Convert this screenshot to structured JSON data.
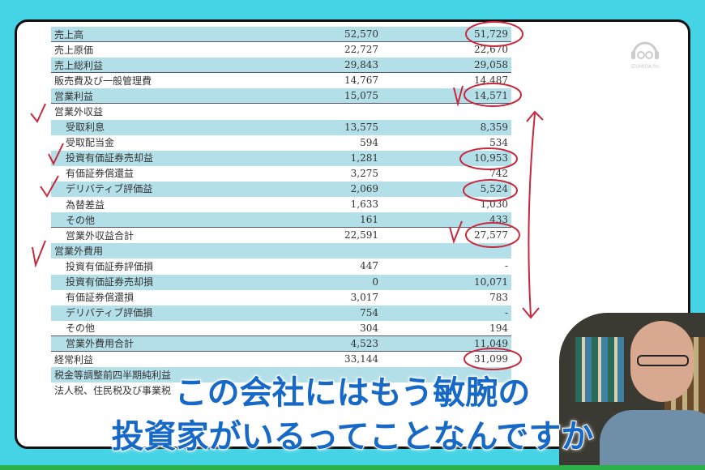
{
  "logo": {
    "text": "IZUMIDA.fm"
  },
  "table": {
    "rows": [
      {
        "label": "売上高",
        "v1": "52,570",
        "v2": "51,729",
        "indent": false
      },
      {
        "label": "売上原価",
        "v1": "22,727",
        "v2": "22,670",
        "indent": false
      },
      {
        "label": "売上総利益",
        "v1": "29,843",
        "v2": "29,058",
        "indent": false
      },
      {
        "label": "販売費及び一般管理費",
        "v1": "14,767",
        "v2": "14,487",
        "indent": false
      },
      {
        "label": "営業利益",
        "v1": "15,075",
        "v2": "14,571",
        "indent": false
      },
      {
        "label": "営業外収益",
        "v1": "",
        "v2": "",
        "indent": false
      },
      {
        "label": "受取利息",
        "v1": "13,575",
        "v2": "8,359",
        "indent": true
      },
      {
        "label": "受取配当金",
        "v1": "594",
        "v2": "534",
        "indent": true
      },
      {
        "label": "投資有価証券売却益",
        "v1": "1,281",
        "v2": "10,953",
        "indent": true
      },
      {
        "label": "有価証券償還益",
        "v1": "3,275",
        "v2": "742",
        "indent": true
      },
      {
        "label": "デリバティブ評価益",
        "v1": "2,069",
        "v2": "5,524",
        "indent": true
      },
      {
        "label": "為替差益",
        "v1": "1,633",
        "v2": "1,030",
        "indent": true
      },
      {
        "label": "その他",
        "v1": "161",
        "v2": "433",
        "indent": true
      },
      {
        "label": "営業外収益合計",
        "v1": "22,591",
        "v2": "27,577",
        "indent": true
      },
      {
        "label": "営業外費用",
        "v1": "",
        "v2": "",
        "indent": false
      },
      {
        "label": "投資有価証券評価損",
        "v1": "447",
        "v2": "-",
        "indent": true
      },
      {
        "label": "投資有価証券売却損",
        "v1": "0",
        "v2": "10,071",
        "indent": true
      },
      {
        "label": "有価証券償還損",
        "v1": "3,017",
        "v2": "783",
        "indent": true
      },
      {
        "label": "デリバティブ評価損",
        "v1": "754",
        "v2": "-",
        "indent": true
      },
      {
        "label": "その他",
        "v1": "304",
        "v2": "194",
        "indent": true
      },
      {
        "label": "営業外費用合計",
        "v1": "4,523",
        "v2": "11,049",
        "indent": true
      },
      {
        "label": "経常利益",
        "v1": "33,144",
        "v2": "31,099",
        "indent": false
      },
      {
        "label": "税金等調整前四半期純利益",
        "v1": "",
        "v2": "",
        "indent": false
      },
      {
        "label": "法人税、住民税及び事業税",
        "v1": "",
        "v2": "",
        "indent": false
      }
    ]
  },
  "subtitle": {
    "line1": "この会社にはもう敏腕の",
    "line2": "投資家がいるってことなんですか"
  },
  "colors": {
    "background": "#45d3e6",
    "stripe": "#b3dfe8",
    "subtitle": "#1769c8",
    "annotation": "#c8283c"
  }
}
